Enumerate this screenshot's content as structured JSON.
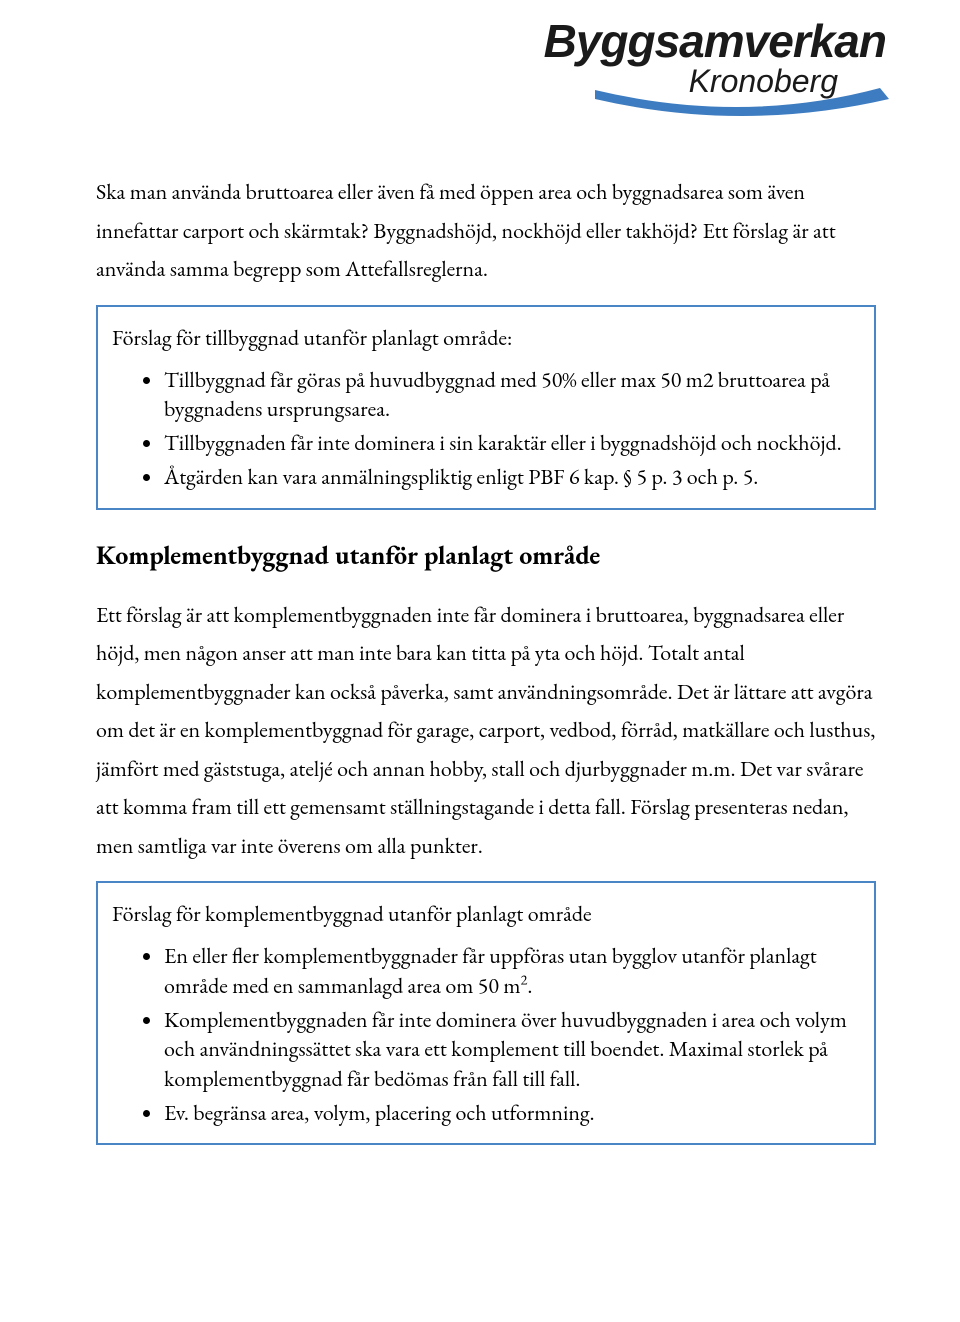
{
  "colors": {
    "callout_border": "#4a86c5",
    "swoosh": "#3d7cc0",
    "text": "#000000",
    "background": "#ffffff"
  },
  "logo": {
    "line1": "Byggsamverkan",
    "line2": "Kronoberg"
  },
  "intro_paragraph": "Ska man använda bruttoarea eller även få med öppen area och byggnadsarea som även innefattar carport och skärmtak? Byggnadshöjd, nockhöjd eller takhöjd? Ett förslag är att använda samma begrepp som Attefallsreglerna.",
  "callout1": {
    "intro": "Förslag för tillbyggnad utanför planlagt område:",
    "items": [
      "Tillbyggnad får göras på huvudbyggnad med 50% eller max 50 m2 bruttoarea på byggnadens ursprungsarea.",
      "Tillbyggnaden får inte dominera i sin karaktär eller i byggnadshöjd och nockhöjd.",
      "Åtgärden kan vara anmälningspliktig enligt PBF 6 kap. § 5 p. 3 och p. 5."
    ]
  },
  "section_title": "Komplementbyggnad utanför planlagt område",
  "section_paragraph": "Ett förslag är att komplementbyggnaden inte får dominera i bruttoarea, byggnadsarea eller höjd, men någon anser att man inte bara kan titta på yta och höjd. Totalt antal komplementbyggnader kan också påverka, samt användningsområde. Det är lättare att avgöra om det är en komplementbyggnad för garage, carport, vedbod, förråd, matkällare och lusthus, jämfört med gäststuga, ateljé och annan hobby, stall och djurbyggnader m.m. Det var svårare att komma fram till ett gemensamt ställningstagande i detta fall. Förslag presenteras nedan, men samtliga var inte överens om alla punkter.",
  "callout2": {
    "intro": "Förslag för komplementbyggnad utanför planlagt område",
    "items_html": [
      "En eller fler komplementbyggnader får uppföras utan bygglov utanför planlagt område med en sammanlagd area om 50 m<sup>2</sup>.",
      "Komplementbyggnaden får inte dominera över huvudbyggnaden i area och volym och användningssättet ska vara ett komplement till boendet. Maximal storlek på komplementbyggnad får bedömas från fall till fall.",
      "Ev. begränsa area, volym, placering och utformning."
    ]
  }
}
